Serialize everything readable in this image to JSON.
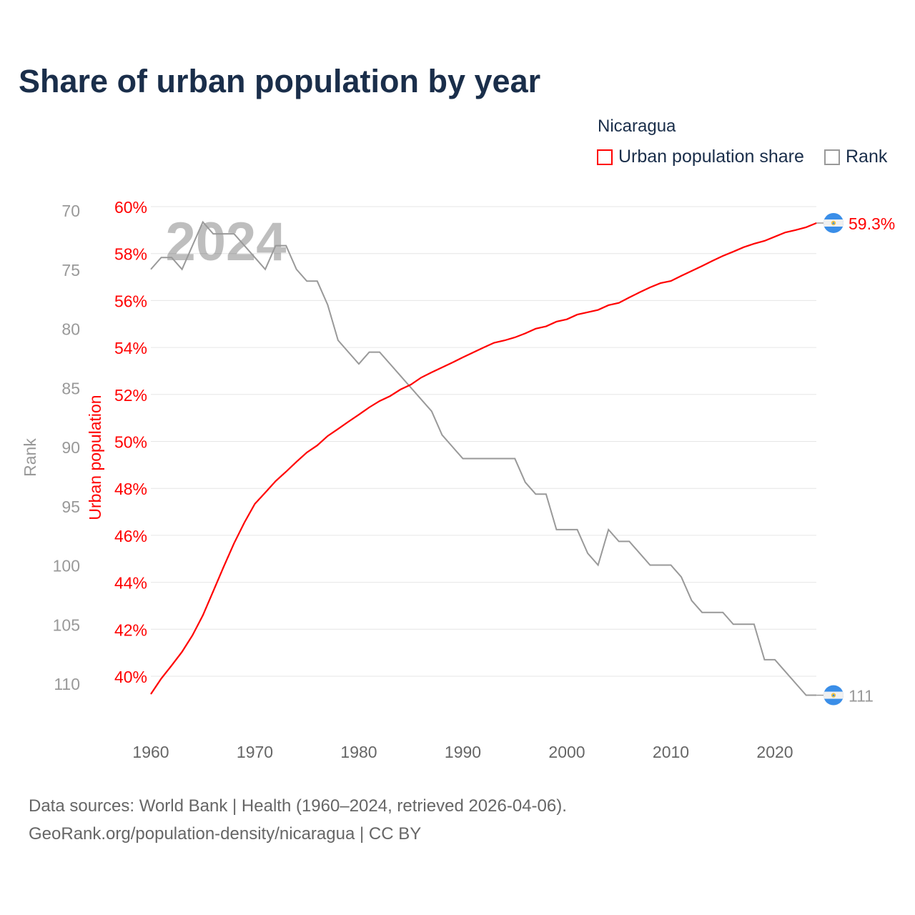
{
  "title": "Share of urban population by year",
  "legend": {
    "title": "Nicaragua",
    "items": [
      {
        "label": "Urban population share",
        "color": "#ff0000"
      },
      {
        "label": "Rank",
        "color": "#999999"
      }
    ]
  },
  "source": {
    "line1": "Data sources: World Bank | Health (1960–2024, retrieved 2026-04-06).",
    "line2": "GeoRank.org/population-density/nicaragua | CC BY"
  },
  "chart_data": {
    "type": "line",
    "title": "Share of urban population by year",
    "year_watermark": "2024",
    "x": [
      1960,
      1961,
      1962,
      1963,
      1964,
      1965,
      1966,
      1967,
      1968,
      1969,
      1970,
      1971,
      1972,
      1973,
      1974,
      1975,
      1976,
      1977,
      1978,
      1979,
      1980,
      1981,
      1982,
      1983,
      1984,
      1985,
      1986,
      1987,
      1988,
      1989,
      1990,
      1991,
      1992,
      1993,
      1994,
      1995,
      1996,
      1997,
      1998,
      1999,
      2000,
      2001,
      2002,
      2003,
      2004,
      2005,
      2006,
      2007,
      2008,
      2009,
      2010,
      2011,
      2012,
      2013,
      2014,
      2015,
      2016,
      2017,
      2018,
      2019,
      2020,
      2021,
      2022,
      2023,
      2024
    ],
    "xlim": [
      1960,
      2024
    ],
    "xticks": [
      "1960",
      "1970",
      "1980",
      "1990",
      "2000",
      "2010",
      "2020"
    ],
    "series": [
      {
        "name": "Urban population share",
        "axis": "left-inner",
        "unit": "%",
        "color": "#ff0000",
        "values": [
          39.24,
          39.9,
          40.46,
          41.04,
          41.74,
          42.59,
          43.62,
          44.66,
          45.66,
          46.55,
          47.34,
          47.82,
          48.31,
          48.71,
          49.13,
          49.53,
          49.83,
          50.23,
          50.53,
          50.84,
          51.14,
          51.45,
          51.72,
          51.93,
          52.21,
          52.42,
          52.72,
          52.94,
          53.15,
          53.36,
          53.58,
          53.79,
          54.0,
          54.2,
          54.3,
          54.43,
          54.6,
          54.8,
          54.9,
          55.1,
          55.2,
          55.4,
          55.5,
          55.6,
          55.8,
          55.9,
          56.13,
          56.35,
          56.56,
          56.74,
          56.83,
          57.05,
          57.26,
          57.47,
          57.69,
          57.9,
          58.08,
          58.27,
          58.42,
          58.54,
          58.72,
          58.9,
          59.0,
          59.12,
          59.3
        ],
        "end_label": "59.3%"
      },
      {
        "name": "Rank",
        "axis": "left-outer",
        "color": "#999999",
        "values": [
          75,
          74,
          74,
          75,
          73,
          71,
          72,
          72,
          72,
          73,
          74,
          75,
          73,
          73,
          75,
          76,
          76,
          78,
          81,
          82,
          83,
          82,
          82,
          83,
          84,
          85,
          86,
          87,
          89,
          90,
          91,
          91,
          91,
          91,
          91,
          91,
          93,
          94,
          94,
          97,
          97,
          97,
          99,
          100,
          97,
          98,
          98,
          99,
          100,
          100,
          100,
          101,
          103,
          104,
          104,
          104,
          105,
          105,
          105,
          108,
          108,
          109,
          110,
          111,
          111
        ],
        "end_label": "111"
      }
    ],
    "ylabel_pct": "Urban population",
    "ylim_pct": [
      39.24,
      60
    ],
    "yticks_pct": [
      "60%",
      "58%",
      "56%",
      "54%",
      "52%",
      "50%",
      "48%",
      "46%",
      "44%",
      "42%",
      "40%"
    ],
    "ylabel_rank": "Rank",
    "ylim_rank": [
      70,
      111
    ],
    "yticks_rank": [
      "70",
      "75",
      "80",
      "85",
      "90",
      "95",
      "100",
      "105",
      "110"
    ],
    "grid": true,
    "legend_position": "top-right"
  }
}
